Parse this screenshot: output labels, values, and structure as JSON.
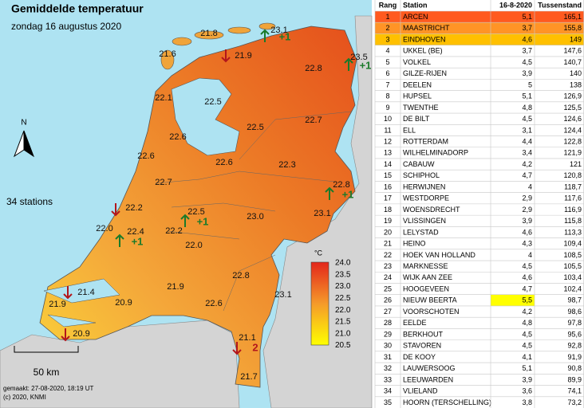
{
  "map": {
    "title": "Gemiddelde temperatuur",
    "subtitle": "zondag 16 augustus 2020",
    "stations": "34 stations",
    "north": "N",
    "scale": "50 km",
    "made": "gemaakt: 27-08-2020, 18:19 UT",
    "copyright": "(c) 2020, KNMI",
    "legend_unit": "°C",
    "legend_labels": [
      "24.0",
      "23.5",
      "23.0",
      "22.5",
      "22.0",
      "21.5",
      "21.0",
      "20.5"
    ],
    "values": [
      "21.8",
      "23.1",
      "21.6",
      "21.9",
      "23.5",
      "22.8",
      "22.1",
      "22.5",
      "22.7",
      "22.5",
      "22.6",
      "22.6",
      "22.6",
      "22.3",
      "22.7",
      "22.8",
      "22.2",
      "22.5",
      "23.0",
      "23.1",
      "22.0",
      "22.4",
      "22.2",
      "22.0",
      "22.8",
      "21.9",
      "21.4",
      "21.9",
      "20.9",
      "22.6",
      "23.1",
      "20.9",
      "21.1",
      "21.7"
    ],
    "changes": [
      "+1",
      "+1",
      "+1",
      "+1",
      "+1",
      "2"
    ]
  },
  "table": {
    "columns": [
      "Rang",
      "Station",
      "16-8-2020",
      "Tussenstand"
    ],
    "rows": [
      [
        1,
        "ARCEN",
        "5,1",
        "165,1"
      ],
      [
        2,
        "MAASTRICHT",
        "3,7",
        "155,8"
      ],
      [
        3,
        "EINDHOVEN",
        "4,6",
        "149"
      ],
      [
        4,
        "UKKEL (BE)",
        "3,7",
        "147,6"
      ],
      [
        5,
        "VOLKEL",
        "4,5",
        "140,7"
      ],
      [
        6,
        "GILZE-RIJEN",
        "3,9",
        "140"
      ],
      [
        7,
        "DEELEN",
        "5",
        "138"
      ],
      [
        8,
        "HUPSEL",
        "5,1",
        "126,9"
      ],
      [
        9,
        "TWENTHE",
        "4,8",
        "125,5"
      ],
      [
        10,
        "DE BILT",
        "4,5",
        "124,6"
      ],
      [
        11,
        "ELL",
        "3,1",
        "124,4"
      ],
      [
        12,
        "ROTTERDAM",
        "4,4",
        "122,8"
      ],
      [
        13,
        "WILHELMINADORP",
        "3,4",
        "121,9"
      ],
      [
        14,
        "CABAUW",
        "4,2",
        "121"
      ],
      [
        15,
        "SCHIPHOL",
        "4,7",
        "120,8"
      ],
      [
        16,
        "HERWIJNEN",
        "4",
        "118,7"
      ],
      [
        17,
        "WESTDORPE",
        "2,9",
        "117,6"
      ],
      [
        18,
        "WOENSDRECHT",
        "2,9",
        "116,9"
      ],
      [
        19,
        "VLISSINGEN",
        "3,9",
        "115,8"
      ],
      [
        20,
        "LELYSTAD",
        "4,6",
        "113,3"
      ],
      [
        21,
        "HEINO",
        "4,3",
        "109,4"
      ],
      [
        22,
        "HOEK VAN HOLLAND",
        "4",
        "108,5"
      ],
      [
        23,
        "MARKNESSE",
        "4,5",
        "105,5"
      ],
      [
        24,
        "WIJK AAN ZEE",
        "4,6",
        "103,4"
      ],
      [
        25,
        "HOOGEVEEN",
        "4,7",
        "102,4"
      ],
      [
        26,
        "NIEUW BEERTA",
        "5,5",
        "98,7"
      ],
      [
        27,
        "VOORSCHOTEN",
        "4,2",
        "98,6"
      ],
      [
        28,
        "EELDE",
        "4,8",
        "97,8"
      ],
      [
        29,
        "BERKHOUT",
        "4,5",
        "95,6"
      ],
      [
        30,
        "STAVOREN",
        "4,5",
        "92,8"
      ],
      [
        31,
        "DE KOOY",
        "4,1",
        "91,9"
      ],
      [
        32,
        "LAUWERSOOG",
        "5,1",
        "90,8"
      ],
      [
        33,
        "LEEUWARDEN",
        "3,9",
        "89,9"
      ],
      [
        34,
        "VLIELAND",
        "3,6",
        "74,1"
      ],
      [
        35,
        "HOORN (TERSCHELLING)",
        "3,8",
        "73,2"
      ]
    ]
  }
}
